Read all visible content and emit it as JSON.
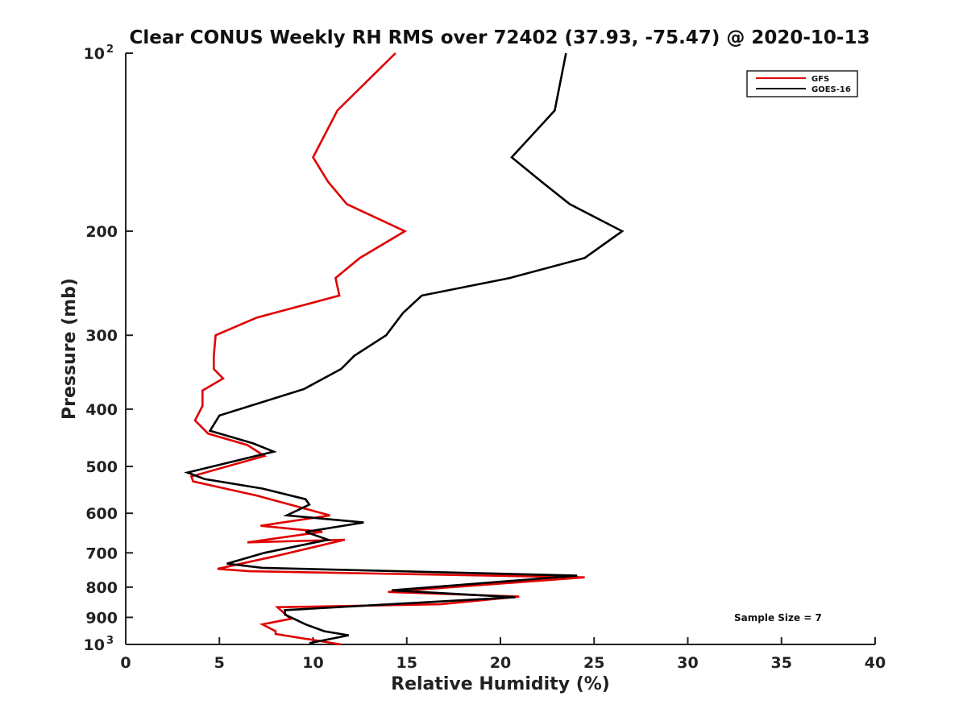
{
  "chart_data": {
    "type": "line",
    "title": "Clear CONUS Weekly RH RMS over 72402 (37.93, -75.47) @ 2020-10-13",
    "xlabel": "Relative Humidity (%)",
    "ylabel": "Pressure (mb)",
    "xlim": [
      0,
      40
    ],
    "ylim": [
      100,
      1000
    ],
    "yscale": "log",
    "y_reversed": true,
    "x_ticks": [
      {
        "value": 0,
        "label": "0"
      },
      {
        "value": 5,
        "label": "5"
      },
      {
        "value": 10,
        "label": "10"
      },
      {
        "value": 15,
        "label": "15"
      },
      {
        "value": 20,
        "label": "20"
      },
      {
        "value": 25,
        "label": "25"
      },
      {
        "value": 30,
        "label": "30"
      },
      {
        "value": 35,
        "label": "35"
      },
      {
        "value": 40,
        "label": "40"
      }
    ],
    "y_ticks": [
      {
        "value": 100,
        "label": "10",
        "sup": "2"
      },
      {
        "value": 200,
        "label": "200"
      },
      {
        "value": 300,
        "label": "300"
      },
      {
        "value": 400,
        "label": "400"
      },
      {
        "value": 500,
        "label": "500"
      },
      {
        "value": 600,
        "label": "600"
      },
      {
        "value": 700,
        "label": "700"
      },
      {
        "value": 800,
        "label": "800"
      },
      {
        "value": 900,
        "label": "900"
      },
      {
        "value": 1000,
        "label": "10",
        "sup": "3"
      }
    ],
    "legend_position": "top-right",
    "annotation": "Sample Size = 7",
    "series": [
      {
        "name": "GFS",
        "color": "#e00000",
        "points": [
          [
            14.4,
            100
          ],
          [
            11.3,
            125
          ],
          [
            10.0,
            150
          ],
          [
            10.8,
            165
          ],
          [
            11.8,
            180
          ],
          [
            14.9,
            200
          ],
          [
            12.5,
            222
          ],
          [
            11.2,
            240
          ],
          [
            11.4,
            257
          ],
          [
            7.0,
            280
          ],
          [
            4.8,
            300
          ],
          [
            4.7,
            325
          ],
          [
            4.7,
            342
          ],
          [
            5.2,
            355
          ],
          [
            4.1,
            372
          ],
          [
            4.1,
            395
          ],
          [
            3.7,
            418
          ],
          [
            4.4,
            440
          ],
          [
            6.5,
            460
          ],
          [
            7.4,
            480
          ],
          [
            3.5,
            520
          ],
          [
            3.6,
            530
          ],
          [
            7.0,
            560
          ],
          [
            10.9,
            605
          ],
          [
            7.2,
            630
          ],
          [
            10.5,
            645
          ],
          [
            6.5,
            672
          ],
          [
            11.7,
            665
          ],
          [
            7.5,
            715
          ],
          [
            7.9,
            710
          ],
          [
            4.9,
            745
          ],
          [
            6.6,
            752
          ],
          [
            24.5,
            770
          ],
          [
            14.0,
            815
          ],
          [
            21.0,
            830
          ],
          [
            16.8,
            855
          ],
          [
            8.1,
            865
          ],
          [
            8.8,
            905
          ],
          [
            7.3,
            925
          ],
          [
            8.0,
            950
          ],
          [
            8.0,
            960
          ],
          [
            11.5,
            1000
          ]
        ]
      },
      {
        "name": "GOES-16",
        "color": "#000000",
        "points": [
          [
            23.5,
            100
          ],
          [
            22.9,
            125
          ],
          [
            20.6,
            150
          ],
          [
            22.2,
            165
          ],
          [
            23.7,
            180
          ],
          [
            26.5,
            200
          ],
          [
            24.5,
            222
          ],
          [
            20.5,
            240
          ],
          [
            15.8,
            257
          ],
          [
            14.8,
            275
          ],
          [
            13.9,
            300
          ],
          [
            12.2,
            325
          ],
          [
            11.5,
            342
          ],
          [
            9.5,
            370
          ],
          [
            5.0,
            410
          ],
          [
            4.5,
            435
          ],
          [
            6.8,
            457
          ],
          [
            7.9,
            472
          ],
          [
            3.3,
            512
          ],
          [
            4.2,
            525
          ],
          [
            7.3,
            545
          ],
          [
            9.6,
            568
          ],
          [
            9.8,
            580
          ],
          [
            8.6,
            605
          ],
          [
            12.7,
            622
          ],
          [
            9.6,
            645
          ],
          [
            10.8,
            665
          ],
          [
            7.4,
            700
          ],
          [
            5.4,
            730
          ],
          [
            7.3,
            742
          ],
          [
            24.1,
            765
          ],
          [
            14.2,
            810
          ],
          [
            20.8,
            832
          ],
          [
            8.5,
            875
          ],
          [
            8.5,
            890
          ],
          [
            9.6,
            925
          ],
          [
            10.6,
            950
          ],
          [
            11.9,
            965
          ],
          [
            9.8,
            995
          ]
        ]
      }
    ]
  }
}
